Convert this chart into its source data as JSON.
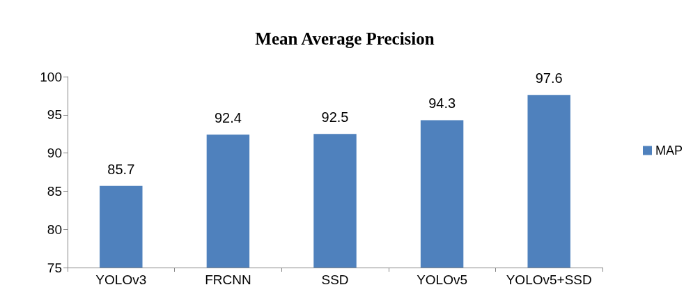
{
  "chart_data": {
    "type": "bar",
    "title": "Mean Average Precision",
    "categories": [
      "YOLOv3",
      "FRCNN",
      "SSD",
      "YOLOv5",
      "YOLOv5+SSD"
    ],
    "series": [
      {
        "name": "MAP",
        "color": "#4f81bd",
        "values": [
          85.7,
          92.4,
          92.5,
          94.3,
          97.6
        ]
      }
    ],
    "ylim": [
      75,
      100
    ],
    "yticks": [
      75,
      80,
      85,
      90,
      95,
      100
    ],
    "grid": false,
    "legend": "right",
    "data_labels": true
  }
}
